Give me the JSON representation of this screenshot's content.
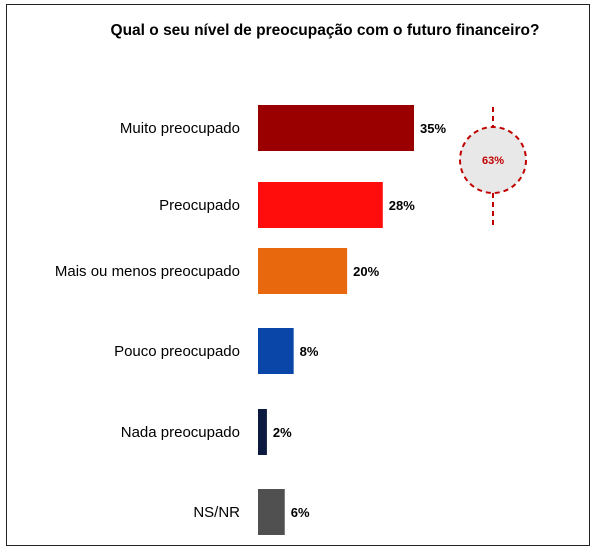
{
  "chart_data": {
    "type": "bar",
    "orientation": "horizontal",
    "title": "Qual o seu nível de preocupação com o futuro financeiro?",
    "categories": [
      "Muito preocupado",
      "Preocupado",
      "Mais ou menos preocupado",
      "Pouco preocupado",
      "Nada preocupado",
      "NS/NR"
    ],
    "values": [
      35,
      28,
      20,
      8,
      2,
      6
    ],
    "value_labels": [
      "35%",
      "28%",
      "20%",
      "8%",
      "2%",
      "6%"
    ],
    "colors": [
      "#9b0000",
      "#ff0d0d",
      "#e8680e",
      "#0a46a8",
      "#0d1a40",
      "#505050"
    ],
    "annotation": {
      "text": "63%",
      "color": "#c00000",
      "groups": [
        "Muito preocupado",
        "Preocupado"
      ]
    },
    "xlabel": "",
    "ylabel": "",
    "xlim": [
      0,
      35
    ],
    "grid": false
  }
}
